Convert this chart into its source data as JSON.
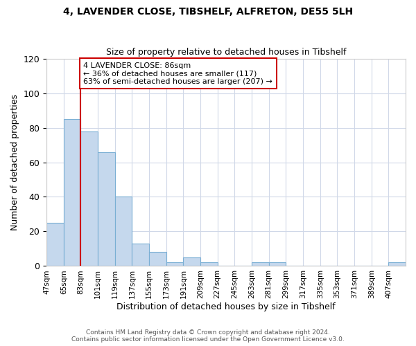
{
  "title": "4, LAVENDER CLOSE, TIBSHELF, ALFRETON, DE55 5LH",
  "subtitle": "Size of property relative to detached houses in Tibshelf",
  "xlabel": "Distribution of detached houses by size in Tibshelf",
  "ylabel": "Number of detached properties",
  "bar_values": [
    25,
    85,
    78,
    66,
    40,
    13,
    8,
    2,
    5,
    2,
    0,
    0,
    2,
    2,
    0,
    0,
    0,
    0,
    0,
    0,
    2
  ],
  "bin_labels": [
    "47sqm",
    "65sqm",
    "83sqm",
    "101sqm",
    "119sqm",
    "137sqm",
    "155sqm",
    "173sqm",
    "191sqm",
    "209sqm",
    "227sqm",
    "245sqm",
    "263sqm",
    "281sqm",
    "299sqm",
    "317sqm",
    "335sqm",
    "353sqm",
    "371sqm",
    "389sqm",
    "407sqm"
  ],
  "bar_color": "#c5d8ed",
  "bar_edge_color": "#7aafd4",
  "bar_width": 1.0,
  "vline_color": "#cc0000",
  "vline_index": 2,
  "annotation_text": "4 LAVENDER CLOSE: 86sqm\n← 36% of detached houses are smaller (117)\n63% of semi-detached houses are larger (207) →",
  "annotation_box_facecolor": "#ffffff",
  "annotation_box_edgecolor": "#cc0000",
  "ylim": [
    0,
    120
  ],
  "yticks": [
    0,
    20,
    40,
    60,
    80,
    100,
    120
  ],
  "footer_line1": "Contains HM Land Registry data © Crown copyright and database right 2024.",
  "footer_line2": "Contains public sector information licensed under the Open Government Licence v3.0.",
  "background_color": "#ffffff",
  "grid_color": "#d0d8e8"
}
